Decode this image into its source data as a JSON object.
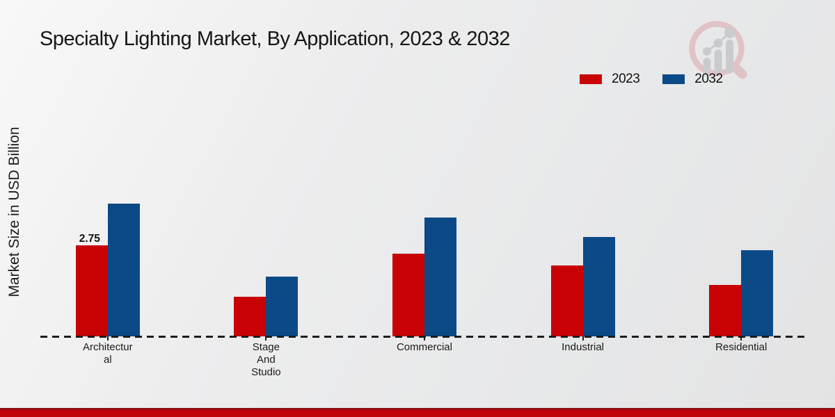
{
  "chart_data": {
    "type": "bar",
    "title": "Specialty Lighting Market, By Application, 2023 & 2032",
    "xlabel": "",
    "ylabel": "Market Size in USD Billion",
    "categories": [
      "Architectural",
      "Stage And Studio",
      "Commercial",
      "Industrial",
      "Residential"
    ],
    "category_label_lines": [
      [
        "Architectur",
        "al"
      ],
      [
        "Stage",
        "And",
        "Studio"
      ],
      [
        "Commercial"
      ],
      [
        "Industrial"
      ],
      [
        "Residential"
      ]
    ],
    "series": [
      {
        "name": "2023",
        "color": "#c90205",
        "values": [
          2.75,
          1.2,
          2.5,
          2.15,
          1.55
        ]
      },
      {
        "name": "2032",
        "color": "#0b4a86",
        "values": [
          4.0,
          1.8,
          3.6,
          3.0,
          2.6
        ]
      }
    ],
    "value_labels": [
      {
        "category_index": 0,
        "series_index": 0,
        "text": "2.75"
      }
    ],
    "ylim": [
      0,
      4.2
    ],
    "grid": false,
    "legend_position": "top-right",
    "baseline_style": "dashed"
  },
  "branding": {
    "logo_icon": "magnifier-growth-chart-icon",
    "logo_ring_color": "#e0bcbf",
    "logo_bars_color": "#c6c6ca",
    "footer_bar_color": "#c00408"
  }
}
